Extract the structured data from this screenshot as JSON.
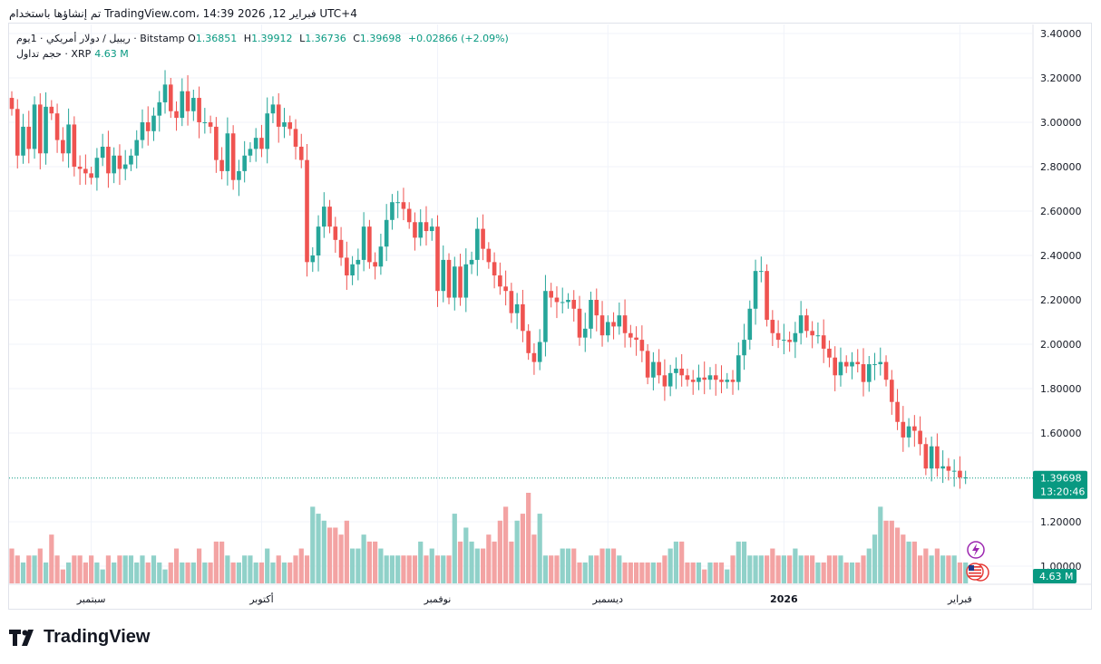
{
  "header": {
    "caption": "تم إنشاؤها باستخدام TradingView.com، 14:39 فبراير 12, 2026 UTC+4"
  },
  "legend": {
    "symbol": "ريبيل / دولار أمريكي · 1يوم · Bitstamp",
    "o_label": "O",
    "o_value": "1.36851",
    "h_label": "H",
    "h_value": "1.39912",
    "l_label": "L",
    "l_value": "1.36736",
    "c_label": "C",
    "c_value": "1.39698",
    "change": "+0.02866 (+2.09%)",
    "volume_label": "حجم تداول · XRP",
    "volume_value": "4.63 M"
  },
  "price_badge": {
    "price": "1.39698",
    "countdown": "13:20:46",
    "volume": "4.63 M"
  },
  "brand": {
    "name": "TradingView"
  },
  "colors": {
    "up": "#26a69a",
    "down": "#ef5350",
    "vol_up": "#90d1c9",
    "vol_down": "#f3a3a3",
    "last": "#089981",
    "grid": "#f0f3fa"
  },
  "chart_data": {
    "type": "candlestick",
    "symbol": "XRP/USD",
    "interval": "1D",
    "yticks": [
      "3.40000",
      "3.20000",
      "3.00000",
      "2.80000",
      "2.60000",
      "2.40000",
      "2.20000",
      "2.00000",
      "1.80000",
      "1.60000",
      "1.20000",
      "1.00000"
    ],
    "ylim": [
      1.0,
      3.4
    ],
    "xticks": [
      {
        "label": "سبتمبر",
        "index": 14
      },
      {
        "label": "أكتوبر",
        "index": 44
      },
      {
        "label": "نوفمبر",
        "index": 75
      },
      {
        "label": "ديسمبر",
        "index": 105
      },
      {
        "label": "2026",
        "index": 136
      },
      {
        "label": "فبراير",
        "index": 167
      }
    ],
    "last_price": 1.39698,
    "closes": [
      3.06,
      2.85,
      2.98,
      2.88,
      3.08,
      2.86,
      3.07,
      3.04,
      2.92,
      2.86,
      2.99,
      2.8,
      2.79,
      2.77,
      2.75,
      2.84,
      2.89,
      2.77,
      2.85,
      2.79,
      2.81,
      2.85,
      2.92,
      3.0,
      2.96,
      3.03,
      3.09,
      3.17,
      3.05,
      3.02,
      3.14,
      3.05,
      3.11,
      3.0,
      3.0,
      2.98,
      2.83,
      2.78,
      2.95,
      2.74,
      2.78,
      2.85,
      2.88,
      2.93,
      2.88,
      3.04,
      3.08,
      2.98,
      3.0,
      2.97,
      2.89,
      2.83,
      2.37,
      2.4,
      2.53,
      2.62,
      2.53,
      2.47,
      2.39,
      2.31,
      2.36,
      2.38,
      2.53,
      2.37,
      2.35,
      2.44,
      2.56,
      2.64,
      2.64,
      2.61,
      2.55,
      2.48,
      2.55,
      2.51,
      2.53,
      2.24,
      2.38,
      2.21,
      2.35,
      2.21,
      2.36,
      2.38,
      2.52,
      2.43,
      2.37,
      2.31,
      2.26,
      2.24,
      2.14,
      2.18,
      2.06,
      1.96,
      1.92,
      2.01,
      2.24,
      2.21,
      2.19,
      2.19,
      2.2,
      2.16,
      2.03,
      2.07,
      2.2,
      2.13,
      2.04,
      2.1,
      2.08,
      2.13,
      2.05,
      2.03,
      2.02,
      1.97,
      1.85,
      1.92,
      1.86,
      1.81,
      1.87,
      1.89,
      1.86,
      1.84,
      1.83,
      1.85,
      1.84,
      1.86,
      1.84,
      1.83,
      1.84,
      1.83,
      1.95,
      2.02,
      2.16,
      2.33,
      2.33,
      2.11,
      2.05,
      2.02,
      2.02,
      2.01,
      2.05,
      2.13,
      2.06,
      2.04,
      2.04,
      1.98,
      1.94,
      1.86,
      1.92,
      1.9,
      1.92,
      1.91,
      1.83,
      1.91,
      1.91,
      1.92,
      1.84,
      1.74,
      1.65,
      1.58,
      1.63,
      1.61,
      1.55,
      1.44,
      1.54,
      1.44,
      1.45,
      1.43,
      1.43,
      1.4,
      1.4
    ],
    "volume": {
      "label": "حجم تداول · XRP",
      "last": "4.63 M",
      "values": [
        0.5,
        0.4,
        0.3,
        0.4,
        0.4,
        0.5,
        0.3,
        0.7,
        0.4,
        0.2,
        0.3,
        0.4,
        0.4,
        0.3,
        0.4,
        0.3,
        0.2,
        0.4,
        0.3,
        0.4,
        0.4,
        0.4,
        0.3,
        0.4,
        0.3,
        0.4,
        0.3,
        0.2,
        0.3,
        0.5,
        0.3,
        0.3,
        0.3,
        0.5,
        0.3,
        0.3,
        0.6,
        0.6,
        0.4,
        0.3,
        0.3,
        0.4,
        0.4,
        0.3,
        0.3,
        0.5,
        0.3,
        0.4,
        0.3,
        0.3,
        0.4,
        0.5,
        0.4,
        1.1,
        1.0,
        0.9,
        0.8,
        0.8,
        0.7,
        0.9,
        0.5,
        0.5,
        0.7,
        0.6,
        0.6,
        0.5,
        0.4,
        0.4,
        0.4,
        0.4,
        0.4,
        0.4,
        0.6,
        0.4,
        0.5,
        0.4,
        0.4,
        0.4,
        1.0,
        0.6,
        0.8,
        0.6,
        0.5,
        0.5,
        0.7,
        0.6,
        0.9,
        1.1,
        0.6,
        0.9,
        1.0,
        1.3,
        0.7,
        1.0,
        0.4,
        0.4,
        0.4,
        0.5,
        0.5,
        0.5,
        0.3,
        0.3,
        0.4,
        0.4,
        0.5,
        0.5,
        0.5,
        0.4,
        0.3,
        0.3,
        0.3,
        0.3,
        0.3,
        0.3,
        0.3,
        0.4,
        0.5,
        0.6,
        0.6,
        0.3,
        0.3,
        0.3,
        0.2,
        0.3,
        0.3,
        0.3,
        0.2,
        0.4,
        0.6,
        0.6,
        0.4,
        0.4,
        0.4,
        0.4,
        0.5,
        0.4,
        0.4,
        0.4,
        0.5,
        0.4,
        0.4,
        0.4,
        0.3,
        0.3,
        0.4,
        0.4,
        0.4,
        0.3,
        0.3,
        0.3,
        0.4,
        0.5,
        0.7,
        1.1,
        0.9,
        0.9,
        0.8,
        0.7,
        0.6,
        0.6,
        0.4,
        0.5,
        0.4,
        0.5,
        0.4,
        0.4,
        0.4,
        0.3,
        0.3
      ]
    }
  }
}
